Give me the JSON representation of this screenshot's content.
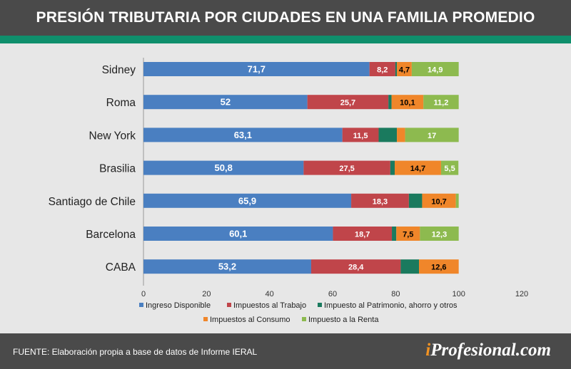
{
  "header": {
    "title": "PRESIÓN TRIBUTARIA POR CIUDADES EN UNA FAMILIA PROMEDIO"
  },
  "footer": {
    "source": "FUENTE: Elaboración propia a base de datos de Informe IERAL",
    "brand_prefix": "i",
    "brand_rest": "Profesional.com"
  },
  "colors": {
    "header_bg": "#4a4a4a",
    "stripe": "#0f8f6c",
    "panel_bg": "#e7e7e7"
  },
  "chart_data": {
    "type": "bar",
    "orientation": "horizontal",
    "stacked": true,
    "title": "PRESIÓN TRIBUTARIA POR CIUDADES EN UNA FAMILIA PROMEDIO",
    "categories": [
      "Sidney",
      "Roma",
      "New York",
      "Brasilia",
      "Santiago de Chile",
      "Barcelona",
      "CABA"
    ],
    "xlim": [
      0,
      120
    ],
    "xticks": [
      0,
      20,
      40,
      60,
      80,
      100,
      120
    ],
    "grid": false,
    "legend_position": "bottom",
    "series": [
      {
        "name": "Ingreso Disponible",
        "color": "#4a7fc1",
        "label_color": "#ffffff",
        "values": [
          71.7,
          52,
          63.1,
          50.8,
          65.9,
          60.1,
          53.2
        ],
        "labels": [
          "71,7",
          "52",
          "63,1",
          "50,8",
          "65,9",
          "60,1",
          "53,2"
        ]
      },
      {
        "name": "Impuestos al Trabajo",
        "color": "#c0454a",
        "label_color": "#ffffff",
        "values": [
          8.2,
          25.7,
          11.5,
          27.5,
          18.3,
          18.7,
          28.4
        ],
        "labels": [
          "8,2",
          "25,7",
          "11,5",
          "27,5",
          "18,3",
          "18,7",
          "28,4"
        ]
      },
      {
        "name": "Impuesto al Patrimonio, ahorro y otros",
        "color": "#1a7a5e",
        "label_color": "#ffffff",
        "values": [
          0.5,
          1.0,
          5.8,
          1.4,
          4.2,
          1.4,
          5.8
        ],
        "labels": [
          "",
          "",
          "",
          "",
          "",
          "",
          ""
        ]
      },
      {
        "name": "Impuestos al Consumo",
        "color": "#f0862a",
        "label_color": "#000000",
        "values": [
          4.7,
          10.1,
          2.6,
          14.7,
          10.7,
          7.5,
          12.6
        ],
        "labels": [
          "4,7",
          "10,1",
          "",
          "14,7",
          "10,7",
          "7,5",
          "12,6"
        ]
      },
      {
        "name": "Impuesto a la Renta",
        "color": "#8dba4f",
        "label_color": "#ffffff",
        "values": [
          14.9,
          11.2,
          17,
          5.5,
          0.9,
          12.3,
          0
        ],
        "labels": [
          "14,9",
          "11,2",
          "17",
          "5,5",
          "",
          "12,3",
          ""
        ]
      }
    ]
  }
}
